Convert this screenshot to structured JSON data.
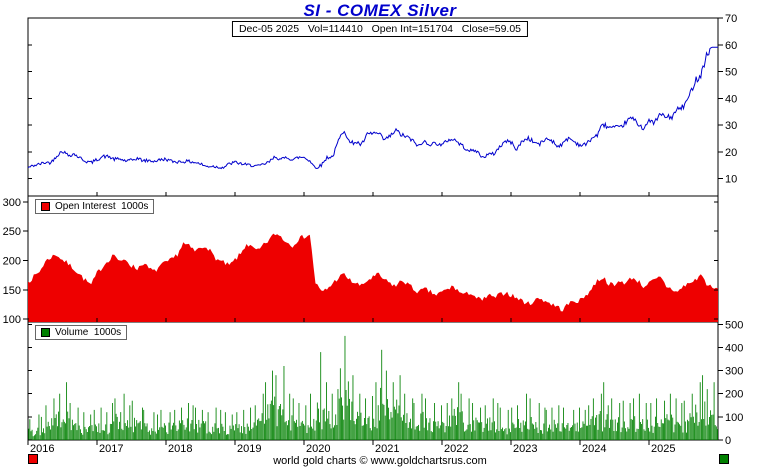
{
  "title": "SI - COMEX Silver",
  "subtitle": "Dec-05 2025   Vol=114410   Open Int=151704   Close=59.05",
  "footer": "world gold charts © www.goldchartsrus.com",
  "colors": {
    "price": "#0000cc",
    "open_interest": "#ee0000",
    "volume": "#008000",
    "title": "#0000cc",
    "axis": "#000000"
  },
  "legends": {
    "open_interest": "Open Interest  1000s",
    "volume": "Volume  1000s"
  },
  "axes": {
    "price_ticks": [
      70,
      60,
      50,
      40,
      30,
      20,
      10
    ],
    "oi_ticks": [
      300,
      250,
      200,
      150,
      100
    ],
    "volume_ticks": [
      500,
      400,
      300,
      200,
      100,
      0
    ],
    "years": [
      "2016",
      "2017",
      "2018",
      "2019",
      "2020",
      "2021",
      "2022",
      "2023",
      "2024",
      "2025"
    ]
  },
  "chart_data": [
    {
      "type": "line",
      "name": "SI price (USD/oz)",
      "interval": "monthly",
      "x_start": "2016-01",
      "x_end": "2025-12",
      "ylim": [
        3.5,
        70
      ],
      "axis_side": "right",
      "last_close": 59.05,
      "values": [
        14.1,
        14.9,
        15.4,
        16.0,
        16.0,
        18.6,
        20.3,
        18.7,
        19.2,
        17.8,
        16.5,
        16.0,
        17.1,
        18.3,
        18.2,
        17.2,
        17.3,
        16.6,
        16.8,
        17.6,
        16.7,
        16.7,
        16.5,
        17.0,
        17.3,
        16.4,
        16.3,
        16.4,
        16.4,
        16.1,
        15.5,
        14.5,
        14.7,
        14.3,
        14.2,
        15.5,
        16.1,
        15.6,
        15.1,
        15.0,
        14.6,
        15.3,
        16.3,
        18.3,
        17.0,
        18.1,
        17.0,
        17.9,
        18.0,
        16.7,
        14.0,
        15.0,
        17.9,
        18.2,
        24.2,
        28.3,
        23.2,
        23.7,
        22.6,
        26.4,
        27.0,
        26.7,
        24.4,
        25.9,
        28.0,
        26.2,
        25.5,
        23.9,
        22.1,
        23.9,
        22.8,
        23.3,
        22.4,
        24.4,
        24.8,
        23.1,
        21.5,
        20.3,
        20.4,
        17.9,
        19.0,
        19.2,
        21.8,
        24.0,
        23.6,
        20.9,
        24.1,
        25.1,
        23.6,
        22.8,
        24.8,
        24.5,
        22.2,
        22.9,
        25.3,
        23.8,
        22.5,
        22.7,
        25.0,
        26.3,
        30.4,
        29.1,
        29.0,
        28.9,
        31.2,
        32.7,
        30.6,
        28.9,
        31.3,
        31.1,
        34.1,
        32.9,
        33.0,
        36.0,
        36.8,
        40.7,
        46.6,
        48.8,
        56.0,
        59.05
      ]
    },
    {
      "type": "area",
      "name": "Open Interest (1000s of contracts)",
      "interval": "monthly",
      "x_start": "2016-01",
      "x_end": "2025-12",
      "ylim": [
        95,
        310
      ],
      "axis_side": "left",
      "last_value": 151.7,
      "values": [
        164,
        172,
        181,
        198,
        206,
        210,
        201,
        194,
        186,
        176,
        166,
        158,
        178,
        190,
        201,
        211,
        196,
        202,
        191,
        186,
        196,
        186,
        181,
        191,
        196,
        201,
        211,
        229,
        224,
        216,
        221,
        226,
        211,
        201,
        196,
        191,
        201,
        211,
        229,
        221,
        216,
        226,
        236,
        246,
        241,
        231,
        226,
        236,
        241,
        244,
        162,
        146,
        151,
        161,
        171,
        176,
        166,
        161,
        156,
        166,
        171,
        176,
        166,
        161,
        156,
        166,
        161,
        151,
        146,
        151,
        146,
        141,
        146,
        151,
        156,
        146,
        141,
        146,
        136,
        131,
        141,
        136,
        141,
        146,
        141,
        136,
        131,
        126,
        131,
        136,
        131,
        126,
        121,
        116,
        126,
        131,
        131,
        141,
        151,
        166,
        171,
        161,
        156,
        166,
        161,
        171,
        166,
        156,
        161,
        166,
        171,
        156,
        151,
        146,
        156,
        161,
        166,
        176,
        161,
        151.7
      ]
    },
    {
      "type": "bar",
      "name": "Volume (1000s of contracts, monthly peak)",
      "interval": "monthly",
      "x_start": "2016-01",
      "x_end": "2025-12",
      "ylim": [
        0,
        510
      ],
      "axis_side": "right",
      "last_value": 114.4,
      "values": [
        90,
        110,
        100,
        150,
        180,
        200,
        250,
        160,
        140,
        120,
        110,
        130,
        140,
        120,
        160,
        180,
        200,
        150,
        170,
        140,
        130,
        120,
        110,
        130,
        120,
        130,
        140,
        160,
        150,
        140,
        130,
        120,
        140,
        130,
        120,
        110,
        120,
        130,
        140,
        150,
        200,
        250,
        300,
        280,
        320,
        200,
        180,
        160,
        150,
        200,
        380,
        250,
        200,
        220,
        310,
        450,
        280,
        200,
        180,
        190,
        250,
        390,
        300,
        250,
        280,
        200,
        180,
        160,
        200,
        180,
        160,
        150,
        160,
        180,
        250,
        200,
        180,
        160,
        140,
        150,
        180,
        160,
        140,
        130,
        140,
        150,
        200,
        180,
        160,
        140,
        130,
        140,
        150,
        140,
        130,
        140,
        130,
        150,
        180,
        200,
        250,
        180,
        160,
        170,
        160,
        180,
        200,
        160,
        160,
        180,
        170,
        200,
        180,
        160,
        170,
        200,
        250,
        280,
        220,
        250
      ]
    }
  ]
}
